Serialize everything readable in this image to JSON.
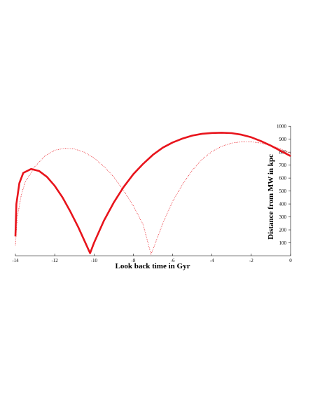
{
  "chart_data": {
    "type": "line",
    "xlabel": "Look back time in Gyr",
    "ylabel": "Distance from MW in kpc",
    "xlim": [
      -14,
      0
    ],
    "xticks": [
      -14,
      -12,
      -10,
      -8,
      -6,
      -4,
      -2,
      0
    ],
    "ylim": [
      0,
      1000
    ],
    "yticks": [
      100,
      200,
      300,
      400,
      500,
      600,
      700,
      800,
      900,
      1000
    ],
    "series": [
      {
        "style": "solid",
        "color": "#e8141c",
        "x": [
          -14,
          -13.95,
          -13.8,
          -13.6,
          -13.2,
          -12.8,
          -12.4,
          -12,
          -11.6,
          -11.2,
          -10.8,
          -10.5,
          -10.2,
          -10,
          -9.5,
          -9,
          -8.5,
          -8,
          -7.5,
          -7,
          -6.5,
          -6,
          -5.5,
          -5,
          -4.5,
          -4,
          -3.5,
          -3,
          -2.5,
          -2,
          -1.5,
          -1,
          -0.5,
          0
        ],
        "values": [
          150,
          400,
          560,
          640,
          670,
          655,
          610,
          540,
          450,
          340,
          220,
          120,
          20,
          100,
          270,
          410,
          530,
          630,
          710,
          780,
          835,
          875,
          905,
          928,
          942,
          948,
          950,
          947,
          935,
          915,
          885,
          850,
          810,
          770
        ]
      },
      {
        "style": "dotted",
        "color": "#e8141c",
        "x": [
          -14,
          -13.9,
          -13.7,
          -13.5,
          -13,
          -12.5,
          -12,
          -11.5,
          -11,
          -10.5,
          -10,
          -9.5,
          -9,
          -8.5,
          -8,
          -7.5,
          -7.1,
          -6.8,
          -6.5,
          -6,
          -5.5,
          -5,
          -4.5,
          -4,
          -3.5,
          -3,
          -2.5,
          -2,
          -1.5,
          -1,
          -0.5,
          0
        ],
        "values": [
          80,
          300,
          470,
          570,
          690,
          770,
          815,
          830,
          825,
          800,
          755,
          690,
          610,
          505,
          385,
          240,
          10,
          130,
          250,
          420,
          550,
          660,
          745,
          805,
          845,
          870,
          880,
          880,
          870,
          850,
          825,
          790
        ]
      }
    ]
  }
}
